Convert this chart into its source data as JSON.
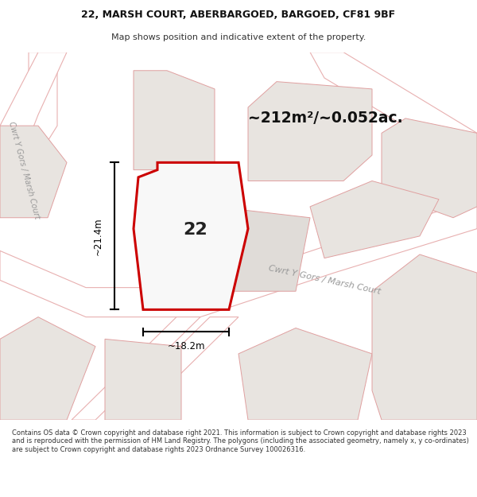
{
  "title_line1": "22, MARSH COURT, ABERBARGOED, BARGOED, CF81 9BF",
  "title_line2": "Map shows position and indicative extent of the property.",
  "area_text": "~212m²/~0.052ac.",
  "number_label": "22",
  "dim_vertical": "~21.4m",
  "dim_horizontal": "~18.2m",
  "street_label_main": "Cwrt Y Gors / Marsh Court",
  "street_label_left": "Cwrt Y Gors / Marsh Court",
  "footer_text": "Contains OS data © Crown copyright and database right 2021. This information is subject to Crown copyright and database rights 2023 and is reproduced with the permission of HM Land Registry. The polygons (including the associated geometry, namely x, y co-ordinates) are subject to Crown copyright and database rights 2023 Ordnance Survey 100026316.",
  "bg_white": "#ffffff",
  "map_bg": "#f2f0ee",
  "road_fill": "#ffffff",
  "road_line_color": "#e8b0b0",
  "plot_fill": "#e8e4e0",
  "plot_line_color": "#e0a0a0",
  "prop_fill": "#f8f8f8",
  "prop_outline": "#cc0000",
  "dim_color": "#000000",
  "text_dark": "#333333",
  "street_text_color": "#999999"
}
